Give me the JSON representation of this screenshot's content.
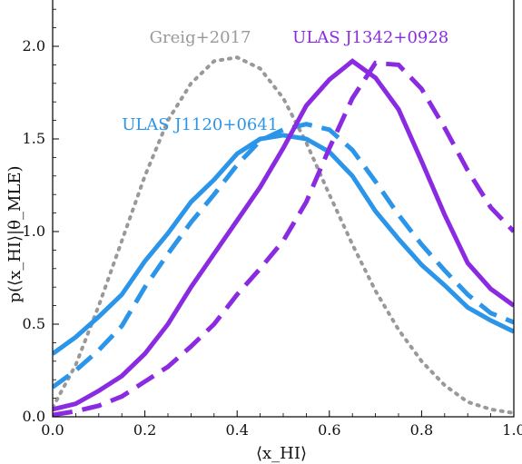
{
  "chart_data": {
    "type": "line",
    "title": "",
    "xlabel": "⟨x_HI⟩",
    "ylabel": "p(⟨x_HI⟩|θ_MLE)",
    "xlim": [
      0.0,
      1.0
    ],
    "ylim": [
      0.0,
      2.25
    ],
    "x_ticks": [
      0.0,
      0.2,
      0.4,
      0.6,
      0.8,
      1.0
    ],
    "x_tick_labels": [
      "0.0",
      "0.2",
      "0.4",
      "0.6",
      "0.8",
      "1.0"
    ],
    "y_ticks": [
      0.0,
      0.5,
      1.0,
      1.5,
      2.0
    ],
    "y_tick_labels": [
      "0.0",
      "0.5",
      "1.0",
      "1.5",
      "2.0"
    ],
    "grid": false,
    "legend": "none",
    "series": [
      {
        "name": "Greig+2017",
        "color": "#999999",
        "style": "dotted",
        "x": [
          0.0,
          0.05,
          0.1,
          0.15,
          0.2,
          0.25,
          0.3,
          0.35,
          0.4,
          0.45,
          0.5,
          0.55,
          0.6,
          0.65,
          0.7,
          0.75,
          0.8,
          0.85,
          0.9,
          0.95,
          1.0
        ],
        "y": [
          0.05,
          0.28,
          0.6,
          0.95,
          1.3,
          1.6,
          1.8,
          1.92,
          1.94,
          1.88,
          1.72,
          1.48,
          1.2,
          0.93,
          0.68,
          0.47,
          0.3,
          0.17,
          0.08,
          0.04,
          0.02
        ]
      },
      {
        "name": "ULAS J1120+0641",
        "color": "#2B95E9",
        "style": "solid",
        "x": [
          0.0,
          0.05,
          0.1,
          0.15,
          0.2,
          0.25,
          0.3,
          0.35,
          0.4,
          0.45,
          0.5,
          0.55,
          0.6,
          0.65,
          0.7,
          0.75,
          0.8,
          0.85,
          0.9,
          0.95,
          1.0
        ],
        "y": [
          0.34,
          0.43,
          0.54,
          0.66,
          0.84,
          0.99,
          1.16,
          1.28,
          1.42,
          1.5,
          1.52,
          1.5,
          1.43,
          1.3,
          1.11,
          0.96,
          0.82,
          0.71,
          0.59,
          0.52,
          0.46
        ]
      },
      {
        "name": "",
        "color": "#2B95E9",
        "style": "dashed",
        "x": [
          0.0,
          0.05,
          0.1,
          0.15,
          0.2,
          0.25,
          0.3,
          0.35,
          0.4,
          0.45,
          0.5,
          0.55,
          0.6,
          0.65,
          0.7,
          0.75,
          0.8,
          0.85,
          0.9,
          0.95,
          1.0
        ],
        "y": [
          0.16,
          0.25,
          0.36,
          0.49,
          0.7,
          0.88,
          1.05,
          1.2,
          1.36,
          1.49,
          1.55,
          1.58,
          1.55,
          1.44,
          1.27,
          1.09,
          0.93,
          0.79,
          0.66,
          0.56,
          0.51
        ]
      },
      {
        "name": "ULAS J1342+0928",
        "color": "#8A2BE2",
        "style": "solid",
        "x": [
          0.0,
          0.05,
          0.1,
          0.15,
          0.2,
          0.25,
          0.3,
          0.35,
          0.4,
          0.45,
          0.5,
          0.55,
          0.6,
          0.65,
          0.7,
          0.75,
          0.8,
          0.85,
          0.9,
          0.95,
          1.0
        ],
        "y": [
          0.04,
          0.07,
          0.14,
          0.22,
          0.34,
          0.5,
          0.7,
          0.88,
          1.06,
          1.24,
          1.45,
          1.68,
          1.82,
          1.92,
          1.83,
          1.66,
          1.38,
          1.09,
          0.83,
          0.69,
          0.6
        ]
      },
      {
        "name": "",
        "color": "#8A2BE2",
        "style": "dashed",
        "x": [
          0.0,
          0.05,
          0.1,
          0.15,
          0.2,
          0.25,
          0.3,
          0.35,
          0.4,
          0.45,
          0.5,
          0.55,
          0.6,
          0.65,
          0.7,
          0.75,
          0.8,
          0.85,
          0.9,
          0.95,
          1.0
        ],
        "y": [
          0.01,
          0.03,
          0.06,
          0.11,
          0.19,
          0.27,
          0.38,
          0.5,
          0.66,
          0.8,
          0.95,
          1.16,
          1.45,
          1.72,
          1.91,
          1.9,
          1.77,
          1.56,
          1.33,
          1.13,
          1.0
        ]
      }
    ],
    "annotations": [
      {
        "text": "Greig+2017",
        "color": "#999999",
        "x": 0.21,
        "y": 2.02
      },
      {
        "text": "ULAS J1342+0928",
        "color": "#8A2BE2",
        "x": 0.52,
        "y": 2.02
      },
      {
        "text": "ULAS J1120+0641",
        "color": "#2B95E9",
        "x": 0.15,
        "y": 1.55
      }
    ]
  }
}
